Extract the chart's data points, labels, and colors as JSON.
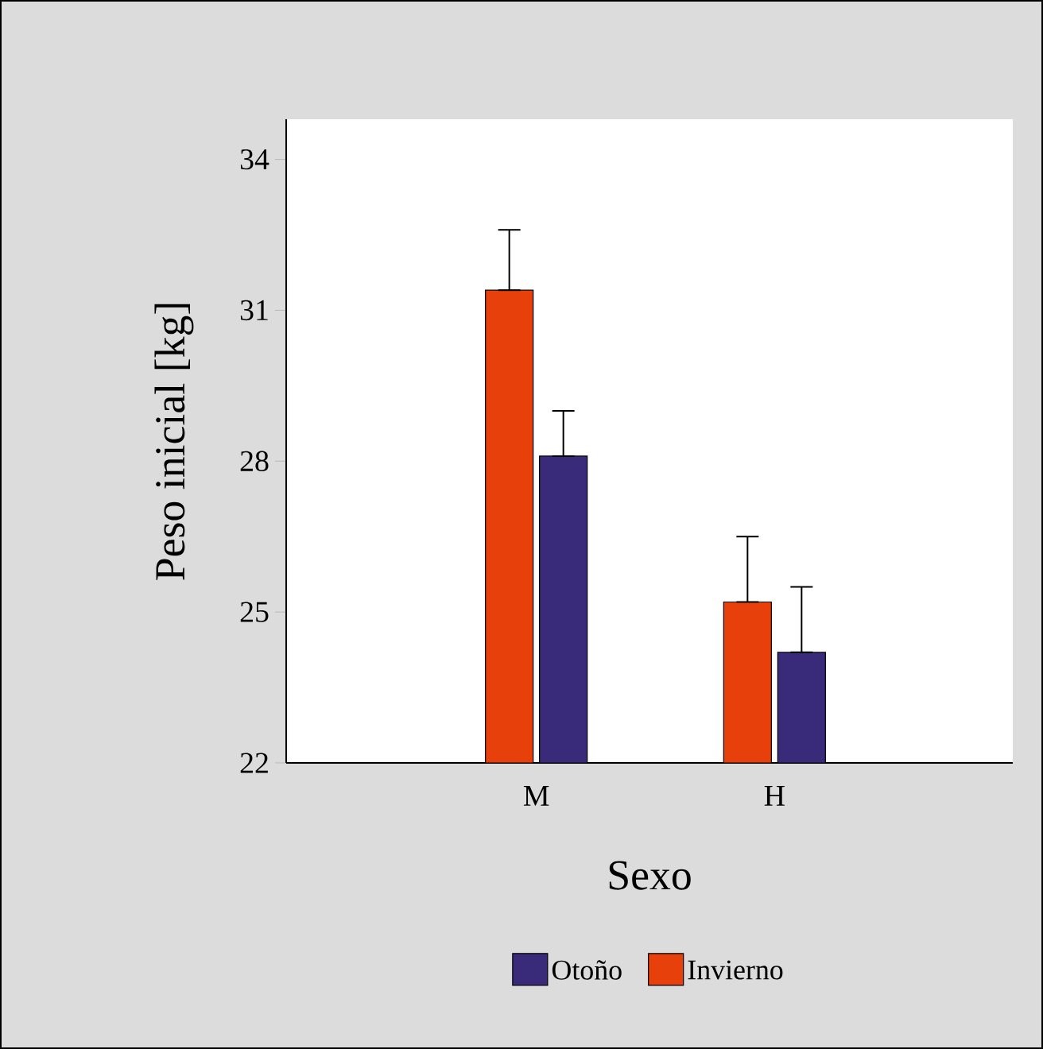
{
  "chart_data": {
    "type": "bar",
    "xlabel": "Sexo",
    "ylabel": "Peso inicial [kg]",
    "categories": [
      "M",
      "H"
    ],
    "series": [
      {
        "name": "Invierno",
        "color": "#e8400a",
        "values": [
          31.4,
          25.2
        ],
        "errors": [
          [
            31.4,
            32.6
          ],
          [
            25.2,
            26.5
          ]
        ]
      },
      {
        "name": "Otoño",
        "color": "#3a2a7a",
        "values": [
          28.1,
          24.2
        ],
        "errors": [
          [
            28.1,
            29.0
          ],
          [
            24.2,
            25.5
          ]
        ]
      }
    ],
    "ylim": [
      22,
      34.8
    ],
    "yticks": [
      22,
      25,
      28,
      31,
      34
    ],
    "grid": false,
    "legend": "bottom"
  }
}
